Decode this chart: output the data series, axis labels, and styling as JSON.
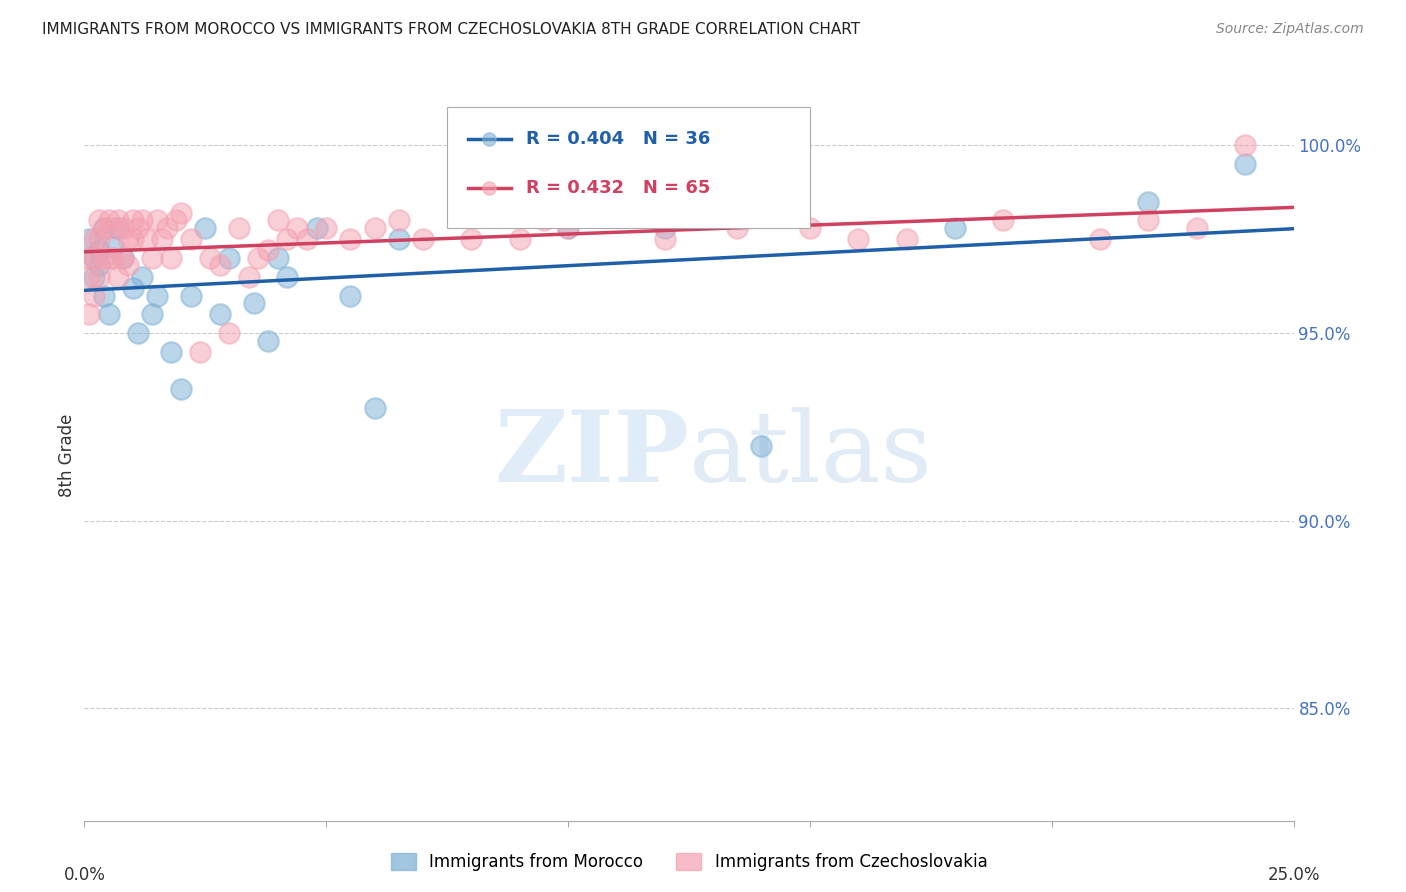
{
  "title": "IMMIGRANTS FROM MOROCCO VS IMMIGRANTS FROM CZECHOSLOVAKIA 8TH GRADE CORRELATION CHART",
  "source": "Source: ZipAtlas.com",
  "ylabel": "8th Grade",
  "yticks": [
    85.0,
    90.0,
    95.0,
    100.0
  ],
  "ytick_labels": [
    "85.0%",
    "90.0%",
    "95.0%",
    "100.0%"
  ],
  "xlim": [
    0.0,
    0.25
  ],
  "ylim": [
    82.0,
    101.5
  ],
  "morocco_color": "#7bafd4",
  "czechoslovakia_color": "#f4a0b0",
  "morocco_R": 0.404,
  "morocco_N": 36,
  "czechoslovakia_R": 0.432,
  "czechoslovakia_N": 65,
  "morocco_line_color": "#2060a8",
  "czechoslovakia_line_color": "#d04060",
  "legend1_label": "Immigrants from Morocco",
  "legend2_label": "Immigrants from Czechoslovakia",
  "watermark_zip": "ZIP",
  "watermark_atlas": "atlas",
  "morocco_x": [
    0.001,
    0.002,
    0.002,
    0.003,
    0.003,
    0.004,
    0.004,
    0.005,
    0.006,
    0.007,
    0.008,
    0.01,
    0.011,
    0.012,
    0.014,
    0.015,
    0.018,
    0.02,
    0.022,
    0.025,
    0.028,
    0.03,
    0.035,
    0.038,
    0.04,
    0.042,
    0.048,
    0.055,
    0.06,
    0.065,
    0.1,
    0.12,
    0.14,
    0.18,
    0.22,
    0.24
  ],
  "morocco_y": [
    97.5,
    97.0,
    96.5,
    96.8,
    97.2,
    96.0,
    97.8,
    95.5,
    97.3,
    97.8,
    97.0,
    96.2,
    95.0,
    96.5,
    95.5,
    96.0,
    94.5,
    93.5,
    96.0,
    97.8,
    95.5,
    97.0,
    95.8,
    94.8,
    97.0,
    96.5,
    97.8,
    96.0,
    93.0,
    97.5,
    97.8,
    97.8,
    92.0,
    97.8,
    98.5,
    99.5
  ],
  "czechoslovakia_x": [
    0.001,
    0.001,
    0.001,
    0.002,
    0.002,
    0.002,
    0.003,
    0.003,
    0.003,
    0.004,
    0.004,
    0.005,
    0.005,
    0.006,
    0.006,
    0.007,
    0.007,
    0.008,
    0.008,
    0.009,
    0.009,
    0.01,
    0.01,
    0.011,
    0.012,
    0.013,
    0.014,
    0.015,
    0.016,
    0.017,
    0.018,
    0.019,
    0.02,
    0.022,
    0.024,
    0.026,
    0.028,
    0.03,
    0.032,
    0.034,
    0.036,
    0.038,
    0.04,
    0.042,
    0.044,
    0.046,
    0.05,
    0.055,
    0.06,
    0.065,
    0.07,
    0.08,
    0.09,
    0.1,
    0.12,
    0.15,
    0.17,
    0.19,
    0.21,
    0.22,
    0.23,
    0.24,
    0.16,
    0.135,
    0.095
  ],
  "czechoslovakia_y": [
    97.0,
    96.5,
    95.5,
    97.5,
    97.0,
    96.0,
    98.0,
    97.5,
    96.5,
    97.8,
    97.0,
    98.0,
    97.0,
    97.8,
    97.0,
    98.0,
    96.5,
    97.8,
    97.0,
    97.5,
    96.8,
    98.0,
    97.5,
    97.8,
    98.0,
    97.5,
    97.0,
    98.0,
    97.5,
    97.8,
    97.0,
    98.0,
    98.2,
    97.5,
    94.5,
    97.0,
    96.8,
    95.0,
    97.8,
    96.5,
    97.0,
    97.2,
    98.0,
    97.5,
    97.8,
    97.5,
    97.8,
    97.5,
    97.8,
    98.0,
    97.5,
    97.5,
    97.5,
    97.8,
    97.5,
    97.8,
    97.5,
    98.0,
    97.5,
    98.0,
    97.8,
    100.0,
    97.5,
    97.8,
    98.0
  ]
}
